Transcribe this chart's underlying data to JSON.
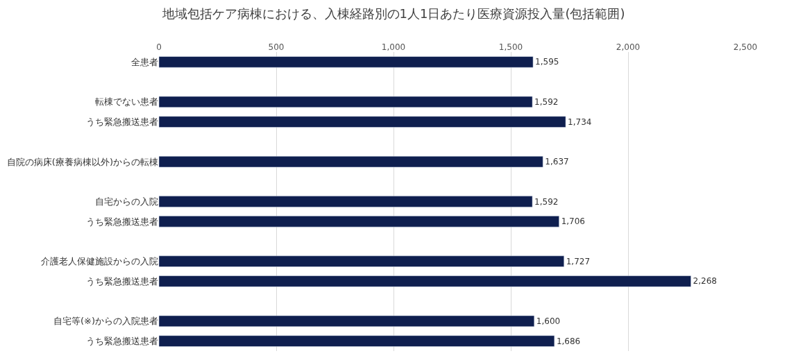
{
  "chart_data": {
    "type": "bar",
    "orientation": "horizontal",
    "title": "地域包括ケア病棟における、入棟経路別の1人1日あたり医療資源投入量(包括範囲)",
    "categories": [
      "全患者",
      null,
      "転棟でない患者",
      "うち緊急搬送患者",
      null,
      "自院の病床(療養病棟以外)からの転棟",
      null,
      "自宅からの入院",
      "うち緊急搬送患者",
      null,
      "介護老人保健施設からの入院",
      "うち緊急搬送患者",
      null,
      "自宅等(※)からの入院患者",
      "うち緊急搬送患者"
    ],
    "values": [
      1595,
      null,
      1592,
      1734,
      null,
      1637,
      null,
      1592,
      1706,
      null,
      1727,
      2268,
      null,
      1600,
      1686
    ],
    "value_labels": [
      "1,595",
      null,
      "1,592",
      "1,734",
      null,
      "1,637",
      null,
      "1,592",
      "1,706",
      null,
      "1,727",
      "2,268",
      null,
      "1,600",
      "1,686"
    ],
    "color": "#0f1f4f",
    "xlim": [
      0,
      2500
    ],
    "xticks": [
      0,
      500,
      {
        "value": 1000,
        "label": "1,000"
      },
      {
        "value": 1500,
        "label": "1,500"
      },
      {
        "value": 2000,
        "label": "2,000"
      },
      {
        "value": 2500,
        "label": "2,500"
      }
    ],
    "grid": "x",
    "legend": false
  }
}
